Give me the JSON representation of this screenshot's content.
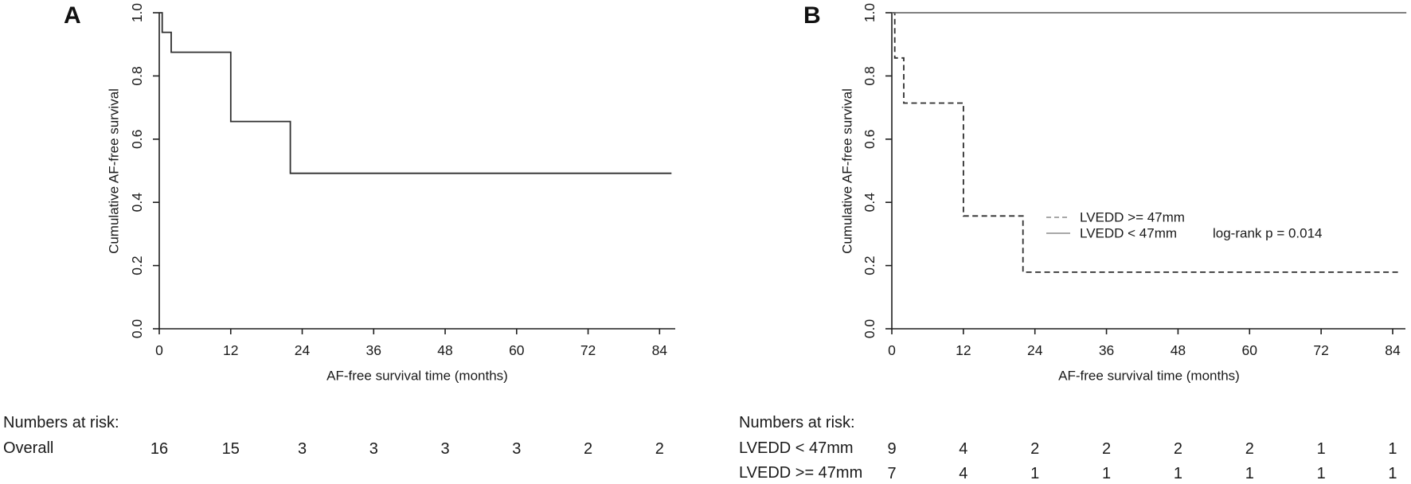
{
  "chart_data": [
    {
      "type": "line",
      "panel_label": "A",
      "xlabel": "AF-free survival time (months)",
      "ylabel": "Cumulative AF-free survival",
      "xlim": [
        0,
        87
      ],
      "ylim": [
        0.0,
        1.0
      ],
      "xticks": [
        0,
        12,
        24,
        36,
        48,
        60,
        72,
        84
      ],
      "ytick_labels": [
        "0.0",
        "0.2",
        "0.4",
        "0.6",
        "0.8",
        "1.0"
      ],
      "grid": false,
      "series": [
        {
          "name": "Overall",
          "kind": "step-post",
          "line_style": "solid",
          "color": "#2f2f2f",
          "x": [
            0,
            0.5,
            2,
            12,
            22,
            86
          ],
          "y": [
            1.0,
            0.938,
            0.875,
            0.656,
            0.492,
            0.492
          ]
        }
      ],
      "risk_table": {
        "title": "Numbers at risk:",
        "rows": [
          {
            "label": "Overall",
            "values": [
              "16",
              "15",
              "3",
              "3",
              "3",
              "3",
              "2",
              "2"
            ]
          }
        ]
      }
    },
    {
      "type": "line",
      "panel_label": "B",
      "xlabel": "AF-free survival time (months)",
      "ylabel": "Cumulative AF-free survival",
      "xlim": [
        0,
        87
      ],
      "ylim": [
        0.0,
        1.0
      ],
      "xticks": [
        0,
        12,
        24,
        36,
        48,
        60,
        72,
        84
      ],
      "ytick_labels": [
        "0.0",
        "0.2",
        "0.4",
        "0.6",
        "0.8",
        "1.0"
      ],
      "grid": false,
      "series": [
        {
          "name": "LVEDD >= 47mm",
          "kind": "step-post",
          "line_style": "dashed",
          "color": "#2f2f2f",
          "x": [
            0,
            0.5,
            2,
            12,
            22,
            85
          ],
          "y": [
            1.0,
            0.857,
            0.714,
            0.357,
            0.179,
            0.179
          ]
        },
        {
          "name": "LVEDD < 47mm",
          "kind": "step-post",
          "line_style": "solid",
          "color": "#6e6e6e",
          "x": [
            0,
            86.3
          ],
          "y": [
            1.0,
            1.0
          ]
        }
      ],
      "legend": {
        "position": "center-right",
        "sample_color": "#8c8c8c",
        "entries": [
          {
            "label": "LVEDD >= 47mm",
            "style": "dashed"
          },
          {
            "label": "LVEDD < 47mm",
            "style": "solid"
          }
        ]
      },
      "annotation": "log-rank p = 0.014",
      "risk_table": {
        "title": "Numbers at risk:",
        "rows": [
          {
            "label": "LVEDD < 47mm",
            "values": [
              "9",
              "4",
              "2",
              "2",
              "2",
              "2",
              "1",
              "1"
            ]
          },
          {
            "label": "LVEDD >= 47mm",
            "values": [
              "7",
              "4",
              "1",
              "1",
              "1",
              "1",
              "1",
              "1"
            ]
          }
        ]
      }
    }
  ]
}
